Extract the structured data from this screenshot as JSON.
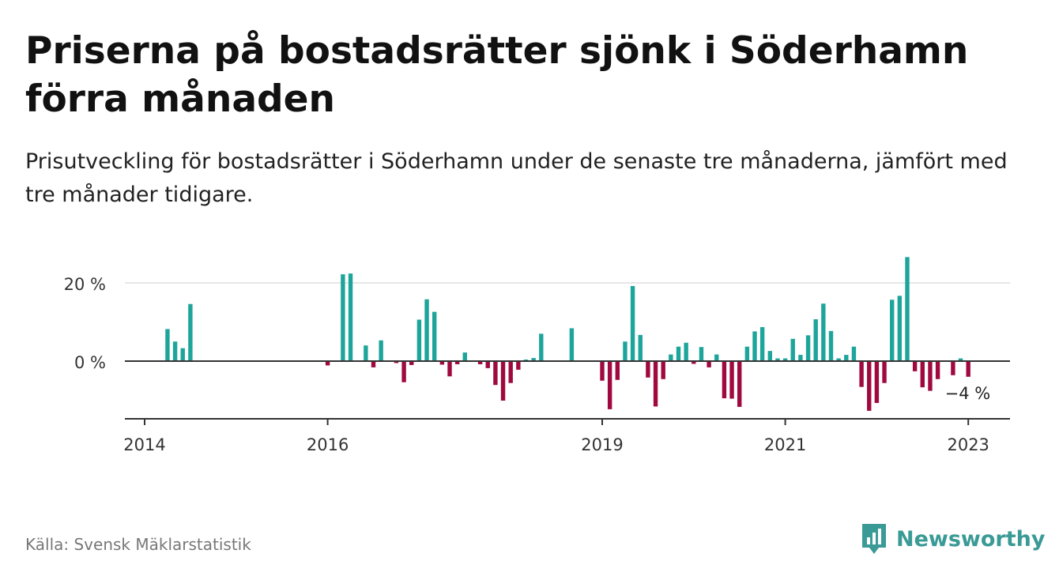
{
  "header": {
    "title": "Priserna på bostadsrätter sjönk i Söderhamn förra månaden",
    "subtitle": "Prisutveckling för bostadsrätter i Söderhamn under de senaste tre månaderna, jämfört med tre månader tidigare."
  },
  "footer": {
    "source": "Källa: Svensk Mäklarstatistik",
    "brand": "Newsworthy"
  },
  "colors": {
    "positive": "#1ea59b",
    "negative": "#a0093f",
    "brand": "#3a9a96"
  },
  "chart_data": {
    "type": "bar",
    "ylabel": "",
    "xlabel": "",
    "ylim": [
      -15,
      27
    ],
    "yticks": [
      {
        "value": 0,
        "label": "0 %"
      },
      {
        "value": 20,
        "label": "20 %"
      }
    ],
    "xticks": [
      {
        "value": "2014",
        "label": "2014"
      },
      {
        "value": "2016",
        "label": "2016"
      },
      {
        "value": "2019",
        "label": "2019"
      },
      {
        "value": "2021",
        "label": "2021"
      },
      {
        "value": "2023",
        "label": "2023"
      }
    ],
    "last_value_label": "−4 %",
    "values": [
      {
        "x": "2014-03",
        "y": 8.2
      },
      {
        "x": "2014-04",
        "y": 5
      },
      {
        "x": "2014-05",
        "y": 3.3
      },
      {
        "x": "2014-06",
        "y": 14.6
      },
      {
        "x": "2016-00",
        "y": -1.1
      },
      {
        "x": "2016-02",
        "y": 22.2
      },
      {
        "x": "2016-03",
        "y": 22.4
      },
      {
        "x": "2016-05",
        "y": 4
      },
      {
        "x": "2016-06",
        "y": -1.6
      },
      {
        "x": "2016-07",
        "y": 5.3
      },
      {
        "x": "2016-09",
        "y": -0.5
      },
      {
        "x": "2016-10",
        "y": -5.4
      },
      {
        "x": "2016-11",
        "y": -1
      },
      {
        "x": "2017-00",
        "y": 10.6
      },
      {
        "x": "2017-01",
        "y": 15.8
      },
      {
        "x": "2017-02",
        "y": 12.6
      },
      {
        "x": "2017-03",
        "y": -0.9
      },
      {
        "x": "2017-04",
        "y": -3.9
      },
      {
        "x": "2017-05",
        "y": -0.8
      },
      {
        "x": "2017-06",
        "y": 2.2
      },
      {
        "x": "2017-08",
        "y": -0.8
      },
      {
        "x": "2017-09",
        "y": -1.8
      },
      {
        "x": "2017-10",
        "y": -6.1
      },
      {
        "x": "2017-11",
        "y": -10.1
      },
      {
        "x": "2018-00",
        "y": -5.6
      },
      {
        "x": "2018-01",
        "y": -2.2
      },
      {
        "x": "2018-02",
        "y": 0.4
      },
      {
        "x": "2018-03",
        "y": 0.8
      },
      {
        "x": "2018-04",
        "y": 7
      },
      {
        "x": "2018-08",
        "y": 8.4
      },
      {
        "x": "2019-00",
        "y": -5
      },
      {
        "x": "2019-01",
        "y": -12.3
      },
      {
        "x": "2019-02",
        "y": -4.8
      },
      {
        "x": "2019-03",
        "y": 5
      },
      {
        "x": "2019-04",
        "y": 19.2
      },
      {
        "x": "2019-05",
        "y": 6.7
      },
      {
        "x": "2019-06",
        "y": -4.2
      },
      {
        "x": "2019-07",
        "y": -11.6
      },
      {
        "x": "2019-08",
        "y": -4.6
      },
      {
        "x": "2019-09",
        "y": 1.7
      },
      {
        "x": "2019-10",
        "y": 3.7
      },
      {
        "x": "2019-11",
        "y": 4.7
      },
      {
        "x": "2020-00",
        "y": -0.7
      },
      {
        "x": "2020-01",
        "y": 3.6
      },
      {
        "x": "2020-02",
        "y": -1.6
      },
      {
        "x": "2020-03",
        "y": 1.7
      },
      {
        "x": "2020-04",
        "y": -9.5
      },
      {
        "x": "2020-05",
        "y": -9.6
      },
      {
        "x": "2020-06",
        "y": -11.7
      },
      {
        "x": "2020-07",
        "y": 3.7
      },
      {
        "x": "2020-08",
        "y": 7.6
      },
      {
        "x": "2020-09",
        "y": 8.7
      },
      {
        "x": "2020-10",
        "y": 2.6
      },
      {
        "x": "2020-11",
        "y": 0.7
      },
      {
        "x": "2021-00",
        "y": 0.7
      },
      {
        "x": "2021-01",
        "y": 5.7
      },
      {
        "x": "2021-02",
        "y": 1.6
      },
      {
        "x": "2021-03",
        "y": 6.6
      },
      {
        "x": "2021-04",
        "y": 10.7
      },
      {
        "x": "2021-05",
        "y": 14.7
      },
      {
        "x": "2021-06",
        "y": 7.7
      },
      {
        "x": "2021-07",
        "y": 0.7
      },
      {
        "x": "2021-08",
        "y": 1.6
      },
      {
        "x": "2021-09",
        "y": 3.7
      },
      {
        "x": "2021-10",
        "y": -6.6
      },
      {
        "x": "2021-11",
        "y": -12.7
      },
      {
        "x": "2022-00",
        "y": -10.7
      },
      {
        "x": "2022-01",
        "y": -5.6
      },
      {
        "x": "2022-02",
        "y": 15.7
      },
      {
        "x": "2022-03",
        "y": 16.7
      },
      {
        "x": "2022-04",
        "y": 26.6
      },
      {
        "x": "2022-05",
        "y": -2.6
      },
      {
        "x": "2022-06",
        "y": -6.7
      },
      {
        "x": "2022-07",
        "y": -7.6
      },
      {
        "x": "2022-08",
        "y": -4.6
      },
      {
        "x": "2022-10",
        "y": -3.6
      },
      {
        "x": "2022-11",
        "y": 0.7
      },
      {
        "x": "2023-00",
        "y": -4
      }
    ]
  }
}
